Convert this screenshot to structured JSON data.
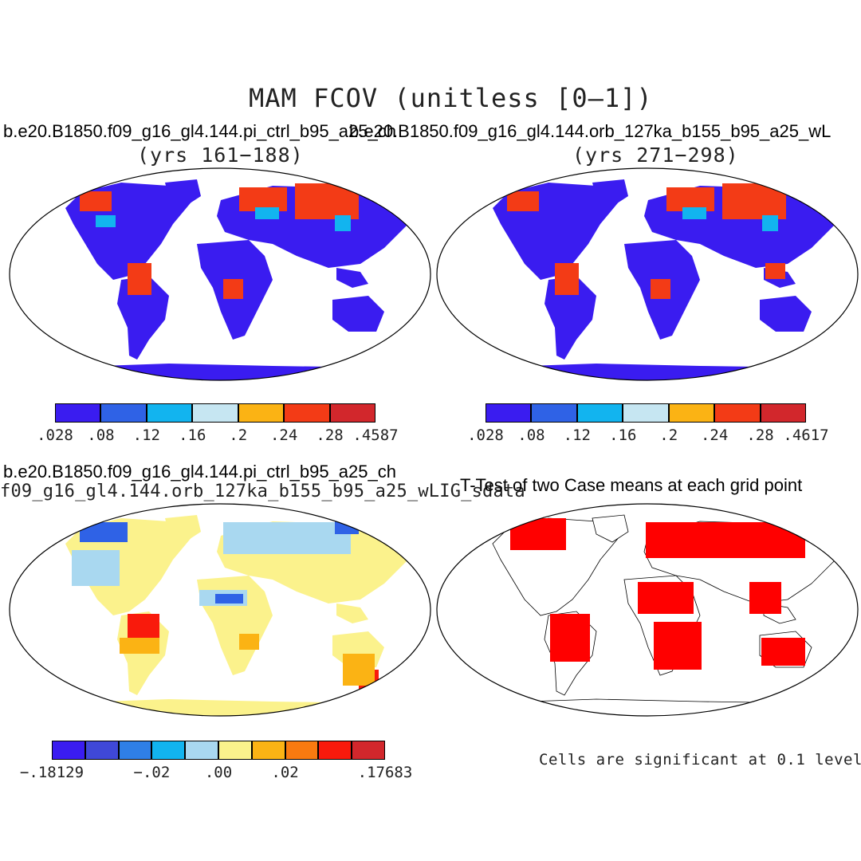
{
  "main_title": "MAM FCOV (unitless [0–1])",
  "panel_top_left": {
    "case": "b.e20.B1850.f09_g16_gl4.144.pi_ctrl_b95_a25_ch",
    "years": "(yrs 161−188)",
    "colorbar": {
      "labels": [
        ".028",
        ".08",
        ".12",
        ".16",
        ".2",
        ".24",
        ".28",
        ".4587"
      ],
      "colors": [
        "#3a1cf0",
        "#2f62e6",
        "#12b4ef",
        "#c6e6f2",
        "#fbb314",
        "#f33b16",
        "#d2272c"
      ]
    }
  },
  "panel_top_right": {
    "case": "b.e20.B1850.f09_g16_gl4.144.orb_127ka_b155_b95_a25_wL",
    "years": "(yrs 271−298)",
    "colorbar": {
      "labels": [
        ".028",
        ".08",
        ".12",
        ".16",
        ".2",
        ".24",
        ".28",
        ".4617"
      ],
      "colors": [
        "#3a1cf0",
        "#2f62e6",
        "#12b4ef",
        "#c6e6f2",
        "#fbb314",
        "#f33b16",
        "#d2272c"
      ]
    }
  },
  "panel_bottom_left": {
    "case_a": "b.e20.B1850.f09_g16_gl4.144.pi_ctrl_b95_a25_ch",
    "case_b": "f09_g16_gl4.144.orb_127ka_b155_b95_a25_wLIG_sdata",
    "colorbar": {
      "labels": [
        "−.18129",
        "−.02",
        ".00",
        ".02",
        ".17683"
      ],
      "colors": [
        "#3a1cf0",
        "#3f48d8",
        "#2f7fe6",
        "#12b4ef",
        "#a9d8f0",
        "#fbf28c",
        "#fbb314",
        "#f97a10",
        "#f91a0c",
        "#d2272c"
      ]
    }
  },
  "panel_bottom_right": {
    "title": "T-Test of two Case means at each grid point",
    "note": "Cells are significant at 0.1 level",
    "significant_color": "#ff0000"
  }
}
